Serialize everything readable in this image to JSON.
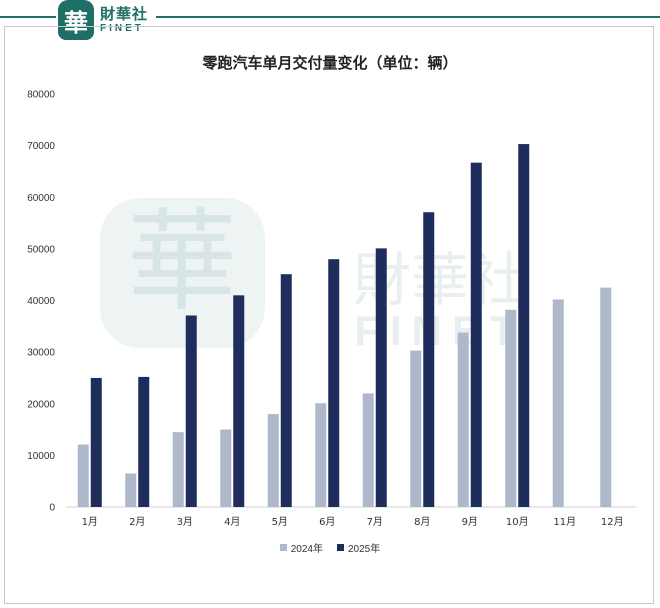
{
  "brand": {
    "logo_char": "華",
    "name_cn": "財華社",
    "name_en": "FINET"
  },
  "colors": {
    "brand": "#1f6f66",
    "series_2024": "#adb8cb",
    "series_2025": "#1f2d5c"
  },
  "chart_data": {
    "type": "bar",
    "title": "零跑汽车单月交付量变化（单位：辆）",
    "categories": [
      "1月",
      "2月",
      "3月",
      "4月",
      "5月",
      "6月",
      "7月",
      "8月",
      "9月",
      "10月",
      "11月",
      "12月"
    ],
    "series": [
      {
        "name": "2024年",
        "values": [
          12100,
          6500,
          14500,
          15000,
          18000,
          20100,
          22000,
          30300,
          33800,
          38200,
          40200,
          42500
        ]
      },
      {
        "name": "2025年",
        "values": [
          25000,
          25200,
          37100,
          41000,
          45100,
          48000,
          50100,
          57100,
          66700,
          70300,
          null,
          null
        ]
      }
    ],
    "ylim": [
      0,
      80000
    ],
    "yticks": [
      "0",
      "10000",
      "20000",
      "30000",
      "40000",
      "50000",
      "60000",
      "70000",
      "80000"
    ],
    "grid": false,
    "legend_position": "bottom"
  }
}
